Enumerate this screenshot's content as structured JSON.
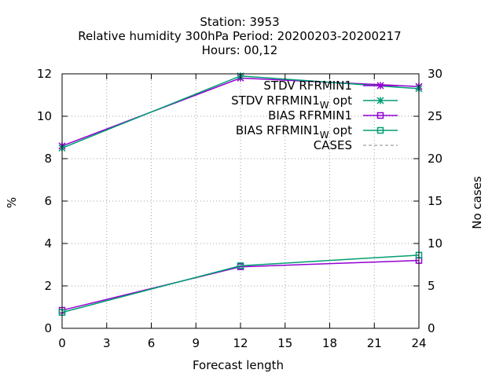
{
  "chart_data": {
    "type": "line",
    "title_lines": [
      "Station:     3953",
      "Relative humidity 300hPa   Period: 20200203-20200217",
      "Hours:  00,12"
    ],
    "xlabel": "Forecast length",
    "ylabel": "%",
    "y2label": "No cases",
    "x_ticks": [
      0,
      3,
      6,
      9,
      12,
      15,
      18,
      21,
      24
    ],
    "y_ticks": [
      0,
      2,
      4,
      6,
      8,
      10,
      12
    ],
    "y2_ticks": [
      0,
      5,
      10,
      15,
      20,
      25,
      30
    ],
    "xlim": [
      0,
      24
    ],
    "ylim": [
      0,
      12
    ],
    "y2lim": [
      0,
      30
    ],
    "grid": true,
    "legend_position": "top-right",
    "x": [
      0,
      12,
      24
    ],
    "series": [
      {
        "name": "STDV RFRMIN1",
        "name_base": "STDV RFRMIN1",
        "name_sub": "",
        "name_tail": "",
        "color": "#9400d3",
        "marker": "x-star",
        "axis": "y",
        "values": [
          8.6,
          11.8,
          11.4
        ]
      },
      {
        "name": "STDV RFRMIN1W opt",
        "name_base": "STDV RFRMIN1",
        "name_sub": "W",
        "name_tail": " opt",
        "color": "#009e73",
        "marker": "x-star",
        "axis": "y",
        "values": [
          8.5,
          11.9,
          11.3
        ]
      },
      {
        "name": "BIAS RFRMIN1",
        "name_base": "BIAS RFRMIN1",
        "name_sub": "",
        "name_tail": "",
        "color": "#9400d3",
        "marker": "square",
        "axis": "y",
        "values": [
          0.85,
          2.9,
          3.2
        ]
      },
      {
        "name": "BIAS RFRMIN1W opt",
        "name_base": "BIAS RFRMIN1",
        "name_sub": "W",
        "name_tail": " opt",
        "color": "#009e73",
        "marker": "square",
        "axis": "y",
        "values": [
          0.75,
          2.95,
          3.45
        ]
      },
      {
        "name": "CASES",
        "name_base": "CASES",
        "name_sub": "",
        "name_tail": "",
        "color": "#888888",
        "marker": "none",
        "dash": true,
        "axis": "y2",
        "values": [
          30,
          30,
          30
        ]
      }
    ]
  }
}
